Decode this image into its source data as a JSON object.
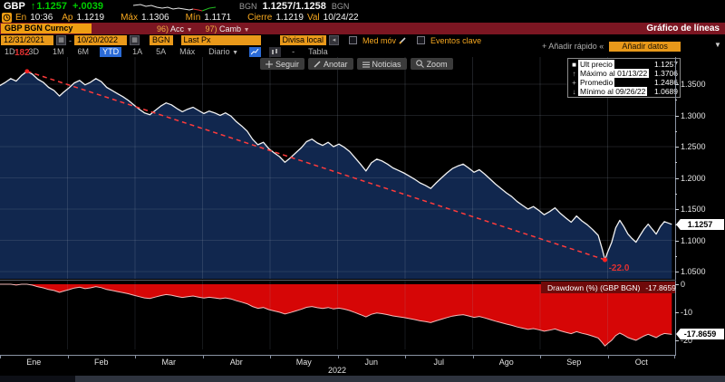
{
  "quote_row": {
    "ticker": "GBP",
    "arrow": "↑",
    "price": "1.1257",
    "change": "+.0039",
    "src1": "BGN",
    "bid_ask": "1.1257/1.1258",
    "src2": "BGN"
  },
  "stats_row": {
    "en_label": "En",
    "en": "10:36",
    "ap_label": "Ap",
    "ap": "1.1219",
    "max_label": "Máx",
    "max": "1.1306",
    "min_label": "Mín",
    "min": "1.1171",
    "cierre_label": "Cierre",
    "cierre": "1.1219",
    "val_label": "Val",
    "val": "10/24/22"
  },
  "title_bar": {
    "ticker_box": "GBP BGN Curncy",
    "menu1_num": "96)",
    "menu1": "Acc",
    "menu2_num": "97)",
    "menu2": "Camb",
    "title": "Gráfico de líneas"
  },
  "toolbar": {
    "date_from": "12/31/2021",
    "dash": "-",
    "date_to": "10/20/2022",
    "source": "BGN",
    "field": "Last Px",
    "currency": "Divisa local",
    "mov_avg": "Med móv",
    "key_events": "Eventos clave"
  },
  "tabs_row": {
    "items": [
      "1D",
      "3D",
      "1M",
      "6M",
      "YTD",
      "1A",
      "5A",
      "Máx"
    ],
    "selected": "YTD",
    "freq": "Diario",
    "freq_caret": "▼",
    "dash": "-",
    "table": "Tabla",
    "quick_add": "+ Añadir rápido «",
    "add_data": "Añadir datos",
    "corner_caret": "▼"
  },
  "chart_toolbar": {
    "follow": "Seguir",
    "annotate": "Anotar",
    "news": "Noticias",
    "zoom": "Zoom"
  },
  "legend": {
    "rows": [
      {
        "icon": "swatch",
        "label": "Ult precio",
        "value": "1.1257"
      },
      {
        "icon": "up",
        "label": "Máximo al 01/13/22",
        "value": "1.3706"
      },
      {
        "icon": "avg",
        "label": "Promedio",
        "value": "1.2486"
      },
      {
        "icon": "down",
        "label": "Mínimo al 09/26/22",
        "value": "1.0689"
      }
    ]
  },
  "annotations": {
    "trend_start": "182",
    "trend_end": "-22.0"
  },
  "price_axis": {
    "ticks": [
      "1.3500",
      "1.3000",
      "1.2500",
      "1.2000",
      "1.1500",
      "1.1000",
      "1.0500"
    ],
    "badge": "1.1257"
  },
  "drawdown_panel": {
    "legend_label": "Drawdown (%) (GBP BGN)",
    "legend_value": "-17.8659",
    "ticks": [
      "0",
      "-10",
      "-20"
    ],
    "badge": "-17.8659"
  },
  "time_axis": {
    "months": [
      "Ene",
      "Feb",
      "Mar",
      "Abr",
      "May",
      "Jun",
      "Jul",
      "Ago",
      "Sep",
      "Oct"
    ],
    "year": "2022"
  },
  "chart_data": {
    "type": "line",
    "title": "GBP BGN Curncy — Gráfico de líneas (YTD)",
    "x_range": [
      "12/31/2021",
      "10/20/2022"
    ],
    "ylim": [
      1.038,
      1.393
    ],
    "y_ticks": [
      1.35,
      1.3,
      1.25,
      1.2,
      1.15,
      1.1,
      1.05
    ],
    "legend_position": "top-right",
    "grid": true,
    "series": [
      {
        "name": "GBP BGN Last Px",
        "color": "#f2f2f2",
        "fill": "#11274e",
        "points": [
          [
            0.0,
            1.348
          ],
          [
            0.008,
            1.353
          ],
          [
            0.016,
            1.359
          ],
          [
            0.024,
            1.355
          ],
          [
            0.032,
            1.364
          ],
          [
            0.04,
            1.3706
          ],
          [
            0.048,
            1.366
          ],
          [
            0.056,
            1.358
          ],
          [
            0.064,
            1.353
          ],
          [
            0.072,
            1.345
          ],
          [
            0.08,
            1.34
          ],
          [
            0.088,
            1.331
          ],
          [
            0.094,
            1.337
          ],
          [
            0.102,
            1.344
          ],
          [
            0.11,
            1.352
          ],
          [
            0.118,
            1.356
          ],
          [
            0.126,
            1.349
          ],
          [
            0.134,
            1.353
          ],
          [
            0.142,
            1.359
          ],
          [
            0.15,
            1.354
          ],
          [
            0.158,
            1.345
          ],
          [
            0.166,
            1.34
          ],
          [
            0.174,
            1.335
          ],
          [
            0.182,
            1.33
          ],
          [
            0.19,
            1.324
          ],
          [
            0.198,
            1.317
          ],
          [
            0.206,
            1.31
          ],
          [
            0.214,
            1.304
          ],
          [
            0.222,
            1.301
          ],
          [
            0.23,
            1.308
          ],
          [
            0.238,
            1.315
          ],
          [
            0.246,
            1.32
          ],
          [
            0.254,
            1.317
          ],
          [
            0.262,
            1.311
          ],
          [
            0.27,
            1.306
          ],
          [
            0.278,
            1.31
          ],
          [
            0.286,
            1.313
          ],
          [
            0.294,
            1.308
          ],
          [
            0.302,
            1.303
          ],
          [
            0.31,
            1.307
          ],
          [
            0.318,
            1.304
          ],
          [
            0.326,
            1.3
          ],
          [
            0.334,
            1.304
          ],
          [
            0.342,
            1.299
          ],
          [
            0.35,
            1.29
          ],
          [
            0.358,
            1.283
          ],
          [
            0.366,
            1.275
          ],
          [
            0.374,
            1.262
          ],
          [
            0.382,
            1.253
          ],
          [
            0.39,
            1.257
          ],
          [
            0.398,
            1.247
          ],
          [
            0.406,
            1.24
          ],
          [
            0.414,
            1.234
          ],
          [
            0.422,
            1.225
          ],
          [
            0.43,
            1.232
          ],
          [
            0.438,
            1.24
          ],
          [
            0.446,
            1.248
          ],
          [
            0.454,
            1.258
          ],
          [
            0.462,
            1.262
          ],
          [
            0.47,
            1.256
          ],
          [
            0.478,
            1.252
          ],
          [
            0.486,
            1.257
          ],
          [
            0.494,
            1.25
          ],
          [
            0.502,
            1.254
          ],
          [
            0.51,
            1.249
          ],
          [
            0.518,
            1.242
          ],
          [
            0.526,
            1.232
          ],
          [
            0.534,
            1.222
          ],
          [
            0.542,
            1.211
          ],
          [
            0.55,
            1.224
          ],
          [
            0.558,
            1.23
          ],
          [
            0.566,
            1.227
          ],
          [
            0.574,
            1.222
          ],
          [
            0.582,
            1.216
          ],
          [
            0.59,
            1.212
          ],
          [
            0.598,
            1.208
          ],
          [
            0.606,
            1.203
          ],
          [
            0.614,
            1.198
          ],
          [
            0.622,
            1.192
          ],
          [
            0.63,
            1.188
          ],
          [
            0.638,
            1.183
          ],
          [
            0.646,
            1.192
          ],
          [
            0.654,
            1.2
          ],
          [
            0.662,
            1.208
          ],
          [
            0.67,
            1.215
          ],
          [
            0.678,
            1.219
          ],
          [
            0.686,
            1.222
          ],
          [
            0.694,
            1.216
          ],
          [
            0.702,
            1.209
          ],
          [
            0.71,
            1.213
          ],
          [
            0.718,
            1.206
          ],
          [
            0.726,
            1.198
          ],
          [
            0.734,
            1.19
          ],
          [
            0.742,
            1.183
          ],
          [
            0.75,
            1.176
          ],
          [
            0.758,
            1.17
          ],
          [
            0.766,
            1.162
          ],
          [
            0.774,
            1.156
          ],
          [
            0.782,
            1.15
          ],
          [
            0.79,
            1.154
          ],
          [
            0.798,
            1.148
          ],
          [
            0.806,
            1.141
          ],
          [
            0.814,
            1.146
          ],
          [
            0.822,
            1.152
          ],
          [
            0.83,
            1.143
          ],
          [
            0.838,
            1.136
          ],
          [
            0.846,
            1.129
          ],
          [
            0.854,
            1.139
          ],
          [
            0.862,
            1.131
          ],
          [
            0.87,
            1.125
          ],
          [
            0.878,
            1.117
          ],
          [
            0.886,
            1.108
          ],
          [
            0.892,
            1.086
          ],
          [
            0.896,
            1.0689
          ],
          [
            0.9,
            1.081
          ],
          [
            0.906,
            1.097
          ],
          [
            0.912,
            1.12
          ],
          [
            0.918,
            1.132
          ],
          [
            0.924,
            1.122
          ],
          [
            0.93,
            1.11
          ],
          [
            0.936,
            1.103
          ],
          [
            0.942,
            1.097
          ],
          [
            0.948,
            1.108
          ],
          [
            0.954,
            1.118
          ],
          [
            0.96,
            1.126
          ],
          [
            0.966,
            1.118
          ],
          [
            0.972,
            1.11
          ],
          [
            0.978,
            1.122
          ],
          [
            0.984,
            1.13
          ],
          [
            0.995,
            1.1257
          ]
        ]
      }
    ],
    "trendline": {
      "color": "#ff3b3b",
      "style": "dashed",
      "from": [
        0.04,
        1.3706
      ],
      "to": [
        0.896,
        1.0689
      ],
      "start_label": "182",
      "end_label": "-22.0"
    },
    "stats": {
      "last": 1.1257,
      "max_date": "01/13/22",
      "max": 1.3706,
      "avg": 1.2486,
      "min_date": "09/26/22",
      "min": 1.0689
    },
    "subchart": {
      "type": "area",
      "name": "Drawdown (%) (GBP BGN)",
      "derived": "percent_below_running_max_of_main_series",
      "last": -17.8659,
      "ylim": [
        -22.5,
        0
      ],
      "y_ticks": [
        0,
        -10,
        -20
      ],
      "fill": "#d60606",
      "line": "#f2b9b9",
      "legend_bg": "#6f0a0a"
    }
  },
  "colors": {
    "accent_amber": "#f7a81f",
    "up_green": "#00cc00",
    "titlebar_red": "#7c1622",
    "tab_blue": "#2b6bd7",
    "area_navy": "#11274e",
    "drawdown_red": "#d60606",
    "trend_red": "#ff3b3b"
  }
}
